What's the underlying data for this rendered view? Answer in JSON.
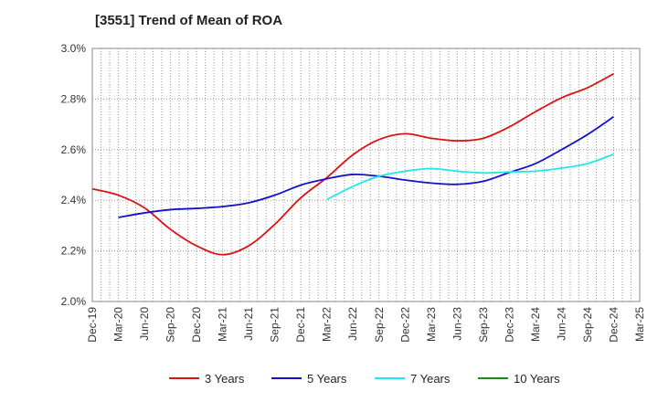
{
  "chart_data": {
    "type": "line",
    "title": "[3551]  Trend of Mean of ROA",
    "xlabel": "",
    "ylabel": "",
    "categories": [
      "Dec-19",
      "Mar-20",
      "Jun-20",
      "Sep-20",
      "Dec-20",
      "Mar-21",
      "Jun-21",
      "Sep-21",
      "Dec-21",
      "Mar-22",
      "Jun-22",
      "Sep-22",
      "Dec-22",
      "Mar-23",
      "Jun-23",
      "Sep-23",
      "Dec-23",
      "Mar-24",
      "Jun-24",
      "Sep-24",
      "Dec-24",
      "Mar-25"
    ],
    "ylim": [
      2.0,
      3.0
    ],
    "yticks": [
      2.0,
      2.2,
      2.4,
      2.6,
      2.8,
      3.0
    ],
    "ytick_labels": [
      "2.0%",
      "2.2%",
      "2.4%",
      "2.6%",
      "2.8%",
      "3.0%"
    ],
    "grid": true,
    "legend_position": "bottom",
    "series": [
      {
        "name": "3 Years",
        "color": "#dd1111",
        "values": [
          2.445,
          2.42,
          2.37,
          2.285,
          2.22,
          2.185,
          2.22,
          2.305,
          2.41,
          2.49,
          2.58,
          2.64,
          2.663,
          2.645,
          2.635,
          2.645,
          2.69,
          2.75,
          2.805,
          2.845,
          2.9,
          null
        ]
      },
      {
        "name": "5 Years",
        "color": "#1111cc",
        "values": [
          null,
          2.332,
          2.35,
          2.363,
          2.368,
          2.375,
          2.39,
          2.42,
          2.46,
          2.485,
          2.502,
          2.495,
          2.48,
          2.468,
          2.463,
          2.475,
          2.51,
          2.545,
          2.6,
          2.66,
          2.73,
          null
        ]
      },
      {
        "name": "7 Years",
        "color": "#22e5ee",
        "values": [
          null,
          null,
          null,
          null,
          null,
          null,
          null,
          null,
          null,
          2.403,
          2.455,
          2.495,
          2.515,
          2.525,
          2.515,
          2.508,
          2.512,
          2.515,
          2.527,
          2.545,
          2.582,
          null
        ]
      },
      {
        "name": "10 Years",
        "color": "#1a8a1a",
        "values": [
          null,
          null,
          null,
          null,
          null,
          null,
          null,
          null,
          null,
          null,
          null,
          null,
          null,
          null,
          null,
          null,
          null,
          null,
          null,
          null,
          null,
          null
        ]
      }
    ]
  }
}
